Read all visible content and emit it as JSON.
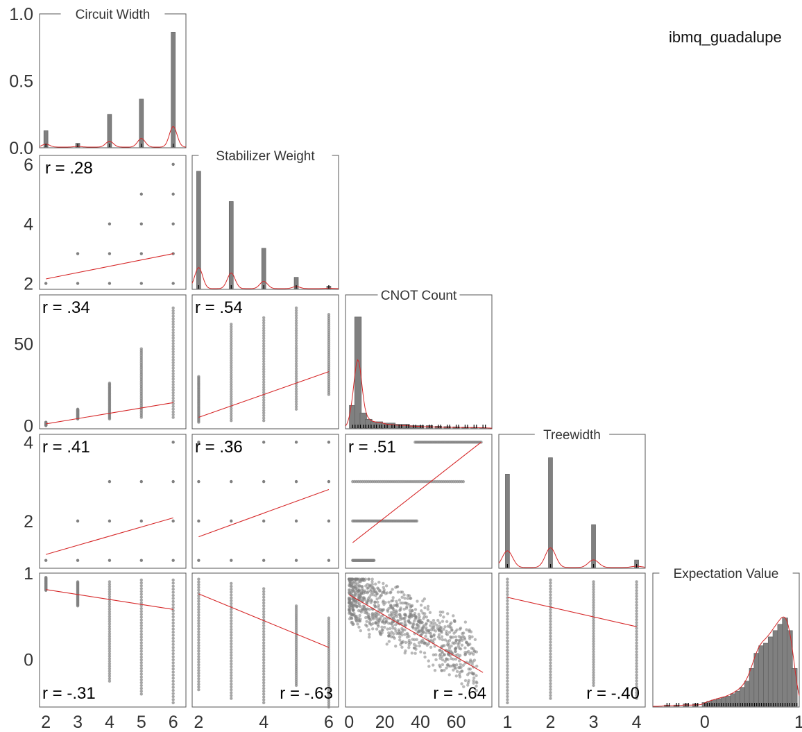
{
  "figure": {
    "suptitle": "ibmq_guadalupe"
  },
  "colors": {
    "marker": "#808080",
    "fit": "#d62728",
    "frame": "#555555",
    "rug": "#000000"
  },
  "variables": [
    {
      "name": "Circuit Width",
      "range": [
        1.8,
        6.4
      ],
      "ticks": [
        2,
        3,
        4,
        5,
        6
      ],
      "tick_labels": [
        "2",
        "3",
        "4",
        "5",
        "6"
      ]
    },
    {
      "name": "Stabilizer Weight",
      "range": [
        1.8,
        6.3
      ],
      "ticks": [
        2,
        4,
        6
      ],
      "tick_labels": [
        "2",
        "4",
        "6"
      ]
    },
    {
      "name": "CNOT Count",
      "range": [
        -2,
        80
      ],
      "ticks": [
        0,
        50
      ],
      "tick_labels": [
        "0",
        "50"
      ],
      "x_ticks": [
        0,
        20,
        40,
        60
      ],
      "x_tick_labels": [
        "0",
        "20",
        "40",
        "60"
      ]
    },
    {
      "name": "Treewidth",
      "range": [
        0.8,
        4.2
      ],
      "ticks": [
        2,
        4
      ],
      "tick_labels": [
        "2",
        "4"
      ],
      "x_ticks": [
        1,
        2,
        3,
        4
      ],
      "x_tick_labels": [
        "1",
        "2",
        "3",
        "4"
      ]
    },
    {
      "name": "Expectation Value",
      "range": [
        -0.55,
        1.0
      ],
      "ticks": [
        0,
        1
      ],
      "tick_labels": [
        "0",
        "1"
      ],
      "x_ticks": [
        0,
        1
      ],
      "x_tick_labels": [
        "0",
        "1"
      ]
    }
  ],
  "diag_yaxis": {
    "range": [
      0,
      1.0
    ],
    "ticks": [
      0,
      0.5,
      1.0
    ],
    "tick_labels": [
      "0.0",
      "0.5",
      "1.0"
    ]
  },
  "chart_data": [
    {
      "type": "bar",
      "panel": "Circuit Width (diagonal)",
      "title": "Circuit Width",
      "categories": [
        2,
        3,
        4,
        5,
        6
      ],
      "values": [
        0.13,
        0.03,
        0.26,
        0.38,
        0.91
      ],
      "ylim": [
        0,
        1.0
      ]
    },
    {
      "type": "bar",
      "panel": "Stabilizer Weight (diagonal)",
      "title": "Stabilizer Weight",
      "categories": [
        2,
        3,
        4,
        5,
        6
      ],
      "values": [
        0.93,
        0.69,
        0.32,
        0.09,
        0.02
      ]
    },
    {
      "type": "bar",
      "panel": "CNOT Count (diagonal)",
      "title": "CNOT Count",
      "x": [
        2,
        5,
        8,
        11,
        14,
        17,
        20,
        24,
        28,
        32,
        36,
        40,
        45,
        50,
        55,
        60,
        65,
        70,
        75
      ],
      "values": [
        0.18,
        0.88,
        0.12,
        0.07,
        0.05,
        0.05,
        0.04,
        0.04,
        0.03,
        0.03,
        0.02,
        0.02,
        0.02,
        0.015,
        0.012,
        0.01,
        0.008,
        0.006,
        0.004
      ]
    },
    {
      "type": "bar",
      "panel": "Treewidth (diagonal)",
      "title": "Treewidth",
      "categories": [
        1,
        2,
        3,
        4
      ],
      "values": [
        0.74,
        0.87,
        0.34,
        0.06
      ]
    },
    {
      "type": "bar",
      "panel": "Expectation Value (diagonal)",
      "title": "Expectation Value",
      "x": [
        -0.4,
        -0.3,
        -0.2,
        -0.1,
        0.0,
        0.05,
        0.1,
        0.15,
        0.2,
        0.25,
        0.3,
        0.35,
        0.4,
        0.45,
        0.5,
        0.55,
        0.6,
        0.65,
        0.7,
        0.75,
        0.8,
        0.85,
        0.9,
        0.95
      ],
      "values": [
        0.01,
        0.01,
        0.02,
        0.02,
        0.03,
        0.04,
        0.05,
        0.06,
        0.07,
        0.08,
        0.1,
        0.12,
        0.15,
        0.2,
        0.3,
        0.42,
        0.48,
        0.5,
        0.55,
        0.6,
        0.65,
        0.7,
        0.6,
        0.3
      ]
    },
    {
      "type": "scatter",
      "x_var": "Circuit Width",
      "y_var": "Stabilizer Weight",
      "r": "r = .28",
      "fit": [
        [
          2,
          2.15
        ],
        [
          6,
          3.0
        ]
      ],
      "points": [
        [
          2,
          2
        ],
        [
          3,
          2
        ],
        [
          3,
          3
        ],
        [
          4,
          2
        ],
        [
          4,
          3
        ],
        [
          4,
          4
        ],
        [
          5,
          2
        ],
        [
          5,
          3
        ],
        [
          5,
          4
        ],
        [
          5,
          5
        ],
        [
          6,
          2
        ],
        [
          6,
          3
        ],
        [
          6,
          4
        ],
        [
          6,
          5
        ],
        [
          6,
          6
        ]
      ]
    },
    {
      "type": "scatter",
      "x_var": "Circuit Width",
      "y_var": "CNOT Count",
      "r": "r = .34",
      "fit": [
        [
          2,
          1
        ],
        [
          6,
          14
        ]
      ],
      "strips": [
        [
          2,
          0,
          2
        ],
        [
          3,
          4,
          10
        ],
        [
          4,
          4,
          26
        ],
        [
          5,
          5,
          47
        ],
        [
          6,
          5,
          72
        ]
      ]
    },
    {
      "type": "scatter",
      "x_var": "Circuit Width",
      "y_var": "Treewidth",
      "r": "r = .41",
      "fit": [
        [
          2,
          1.15
        ],
        [
          6,
          2.08
        ]
      ],
      "points": [
        [
          2,
          1
        ],
        [
          3,
          1
        ],
        [
          3,
          2
        ],
        [
          4,
          1
        ],
        [
          4,
          2
        ],
        [
          4,
          3
        ],
        [
          5,
          1
        ],
        [
          5,
          2
        ],
        [
          5,
          3
        ],
        [
          6,
          1
        ],
        [
          6,
          2
        ],
        [
          6,
          3
        ],
        [
          6,
          4
        ]
      ]
    },
    {
      "type": "scatter",
      "x_var": "Circuit Width",
      "y_var": "Expectation Value",
      "r": "r = -.31",
      "fit": [
        [
          2,
          0.81
        ],
        [
          6,
          0.58
        ]
      ],
      "strips": [
        [
          2,
          0.8,
          0.95
        ],
        [
          3,
          0.62,
          0.9
        ],
        [
          4,
          -0.25,
          0.9
        ],
        [
          5,
          -0.4,
          0.92
        ],
        [
          6,
          -0.5,
          0.92
        ]
      ]
    },
    {
      "type": "scatter",
      "x_var": "Stabilizer Weight",
      "y_var": "CNOT Count",
      "r": "r = .54",
      "fit": [
        [
          2,
          5
        ],
        [
          6,
          33
        ]
      ],
      "strips": [
        [
          2,
          2,
          30
        ],
        [
          3,
          3,
          62
        ],
        [
          4,
          3,
          66
        ],
        [
          5,
          10,
          72
        ],
        [
          6,
          19,
          68
        ]
      ]
    },
    {
      "type": "scatter",
      "x_var": "Stabilizer Weight",
      "y_var": "Treewidth",
      "r": "r = .36",
      "fit": [
        [
          2,
          1.6
        ],
        [
          6,
          2.8
        ]
      ],
      "points": [
        [
          2,
          1
        ],
        [
          2,
          2
        ],
        [
          2,
          3
        ],
        [
          2,
          4
        ],
        [
          3,
          1
        ],
        [
          3,
          2
        ],
        [
          3,
          3
        ],
        [
          3,
          4
        ],
        [
          4,
          1
        ],
        [
          4,
          2
        ],
        [
          4,
          3
        ],
        [
          4,
          4
        ],
        [
          5,
          1
        ],
        [
          5,
          2
        ],
        [
          5,
          3
        ],
        [
          5,
          4
        ],
        [
          6,
          1
        ],
        [
          6,
          2
        ],
        [
          6,
          3
        ],
        [
          6,
          4
        ]
      ]
    },
    {
      "type": "scatter",
      "x_var": "Stabilizer Weight",
      "y_var": "Expectation Value",
      "r": "r = -.63",
      "fit": [
        [
          2,
          0.76
        ],
        [
          6,
          0.14
        ]
      ],
      "strips": [
        [
          2,
          -0.35,
          0.93
        ],
        [
          3,
          -0.45,
          0.88
        ],
        [
          4,
          -0.5,
          0.82
        ],
        [
          5,
          -0.3,
          0.62
        ],
        [
          6,
          -0.55,
          0.48
        ]
      ]
    },
    {
      "type": "scatter",
      "x_var": "CNOT Count",
      "y_var": "Treewidth",
      "r": "r = .51",
      "fit": [
        [
          2,
          1.45
        ],
        [
          74,
          4.0
        ]
      ],
      "strips_h": [
        [
          1,
          2,
          14
        ],
        [
          2,
          2,
          38
        ],
        [
          3,
          2,
          64
        ],
        [
          4,
          37,
          74
        ]
      ]
    },
    {
      "type": "scatter",
      "x_var": "CNOT Count",
      "y_var": "Expectation Value",
      "r": "r = -.64",
      "fit": [
        [
          0,
          0.75
        ],
        [
          75,
          -0.15
        ]
      ],
      "cloud": {
        "x_range": [
          0,
          72
        ],
        "y_top": 0.93,
        "y_bottom": -0.55
      }
    },
    {
      "type": "scatter",
      "x_var": "Treewidth",
      "y_var": "Expectation Value",
      "r": "r = -.40",
      "fit": [
        [
          1,
          0.72
        ],
        [
          4,
          0.38
        ]
      ],
      "strips": [
        [
          1,
          -0.5,
          0.93
        ],
        [
          2,
          -0.45,
          0.92
        ],
        [
          3,
          -0.3,
          0.9
        ],
        [
          4,
          -0.45,
          0.9
        ]
      ]
    }
  ]
}
